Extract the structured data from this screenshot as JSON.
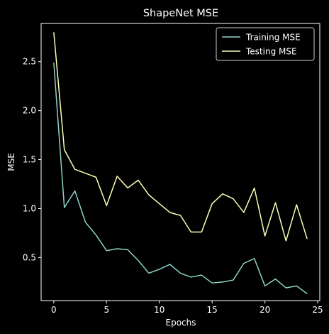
{
  "chart_data": {
    "type": "line",
    "title": "ShapeNet MSE",
    "xlabel": "Epochs",
    "ylabel": "MSE",
    "xlim": [
      -1.2,
      25.2
    ],
    "ylim": [
      0.06,
      2.89
    ],
    "xticks": [
      0,
      5,
      10,
      15,
      20,
      25
    ],
    "yticks": [
      0.5,
      1.0,
      1.5,
      2.0,
      2.5
    ],
    "ytick_labels": [
      "0.5",
      "1.0",
      "1.5",
      "2.0",
      "2.5"
    ],
    "grid": false,
    "legend_position": "top-right",
    "x": [
      0,
      1,
      2,
      3,
      4,
      5,
      6,
      7,
      8,
      9,
      10,
      11,
      12,
      13,
      14,
      15,
      16,
      17,
      18,
      19,
      20,
      21,
      22,
      23,
      24
    ],
    "series": [
      {
        "name": "Training MSE",
        "color": "#8dd3c7",
        "values": [
          2.49,
          1.01,
          1.18,
          0.86,
          0.73,
          0.57,
          0.59,
          0.58,
          0.47,
          0.34,
          0.38,
          0.43,
          0.34,
          0.3,
          0.32,
          0.24,
          0.25,
          0.27,
          0.44,
          0.49,
          0.21,
          0.28,
          0.19,
          0.21,
          0.13
        ]
      },
      {
        "name": "Testing MSE",
        "color": "#feffb3",
        "values": [
          2.8,
          1.6,
          1.4,
          1.36,
          1.32,
          1.03,
          1.33,
          1.21,
          1.29,
          1.14,
          1.05,
          0.96,
          0.93,
          0.76,
          0.76,
          1.05,
          1.15,
          1.1,
          0.96,
          1.21,
          0.72,
          1.06,
          0.67,
          1.04,
          0.69
        ]
      }
    ]
  }
}
